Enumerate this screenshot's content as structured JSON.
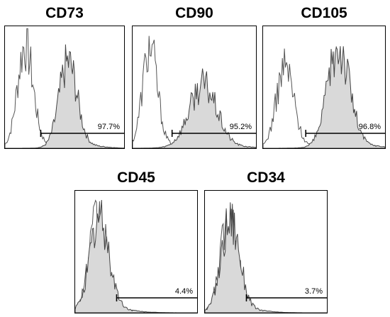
{
  "chart_data": [
    {
      "type": "histogram-overlay",
      "title": "CD73",
      "gate_percent": "97.7%",
      "gate_start": 0.3,
      "series": [
        {
          "color": "#555555",
          "fill": "#ffffff",
          "peak_position": 0.17,
          "peak_width": 0.065,
          "peak_height": 0.82
        },
        {
          "color": "#444444",
          "fill": "#d9d9d9",
          "peak_position": 0.53,
          "peak_width": 0.075,
          "peak_height": 0.68
        }
      ]
    },
    {
      "type": "histogram-overlay",
      "title": "CD90",
      "gate_percent": "95.2%",
      "gate_start": 0.32,
      "series": [
        {
          "color": "#555555",
          "fill": "#ffffff",
          "peak_position": 0.14,
          "peak_width": 0.06,
          "peak_height": 0.8
        },
        {
          "color": "#444444",
          "fill": "#d9d9d9",
          "peak_position": 0.57,
          "peak_width": 0.11,
          "peak_height": 0.5
        }
      ]
    },
    {
      "type": "histogram-overlay",
      "title": "CD105",
      "gate_percent": "96.8%",
      "gate_start": 0.35,
      "series": [
        {
          "color": "#555555",
          "fill": "#ffffff",
          "peak_position": 0.18,
          "peak_width": 0.07,
          "peak_height": 0.65
        },
        {
          "color": "#444444",
          "fill": "#d9d9d9",
          "peak_position": 0.62,
          "peak_width": 0.09,
          "peak_height": 0.8
        }
      ]
    },
    {
      "type": "histogram-overlay",
      "title": "CD45",
      "gate_percent": "4.4%",
      "gate_start": 0.34,
      "series": [
        {
          "color": "#555555",
          "fill": "#ffffff",
          "peak_position": 0.19,
          "peak_width": 0.075,
          "peak_height": 0.76
        },
        {
          "color": "#444444",
          "fill": "#d9d9d9",
          "peak_position": 0.2,
          "peak_width": 0.08,
          "peak_height": 0.72
        }
      ]
    },
    {
      "type": "histogram-overlay",
      "title": "CD34",
      "gate_percent": "3.7%",
      "gate_start": 0.34,
      "series": [
        {
          "color": "#555555",
          "fill": "#ffffff",
          "peak_position": 0.2,
          "peak_width": 0.07,
          "peak_height": 0.78
        },
        {
          "color": "#444444",
          "fill": "#d9d9d9",
          "peak_position": 0.21,
          "peak_width": 0.075,
          "peak_height": 0.74
        }
      ]
    }
  ]
}
